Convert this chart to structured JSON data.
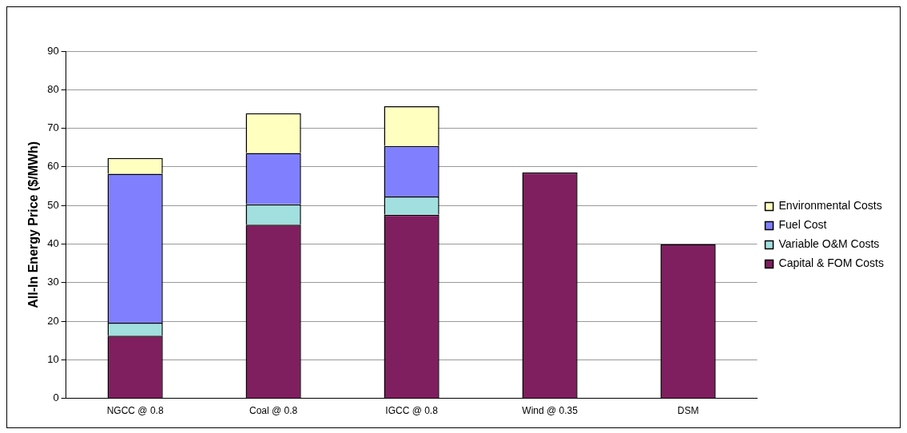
{
  "chart_data": {
    "type": "bar",
    "stacked": true,
    "ylabel": "All-In Energy Price ($/MWh)",
    "categories": [
      "NGCC @ 0.8",
      "Coal @ 0.8",
      "IGCC @ 0.8",
      "Wind @ 0.35",
      "DSM"
    ],
    "series": [
      {
        "name": "Capital & FOM Costs",
        "color": "#7f1f5f",
        "values": [
          16.2,
          45,
          47.6,
          58.6,
          40
        ]
      },
      {
        "name": "Variable O&M Costs",
        "color": "#a2dfdf",
        "values": [
          3.4,
          5.3,
          4.7,
          null,
          null
        ]
      },
      {
        "name": "Fuel Cost",
        "color": "#8080ff",
        "values": [
          38.6,
          13.3,
          13.1,
          null,
          null
        ]
      },
      {
        "name": "Environmental Costs",
        "color": "#ffffc0",
        "values": [
          4.1,
          10.3,
          10.3,
          null,
          null
        ]
      }
    ],
    "ylim": [
      0,
      90
    ],
    "yticks": [
      0,
      10,
      20,
      30,
      40,
      50,
      60,
      70,
      80,
      90
    ],
    "grid": "y",
    "legend": "right"
  }
}
